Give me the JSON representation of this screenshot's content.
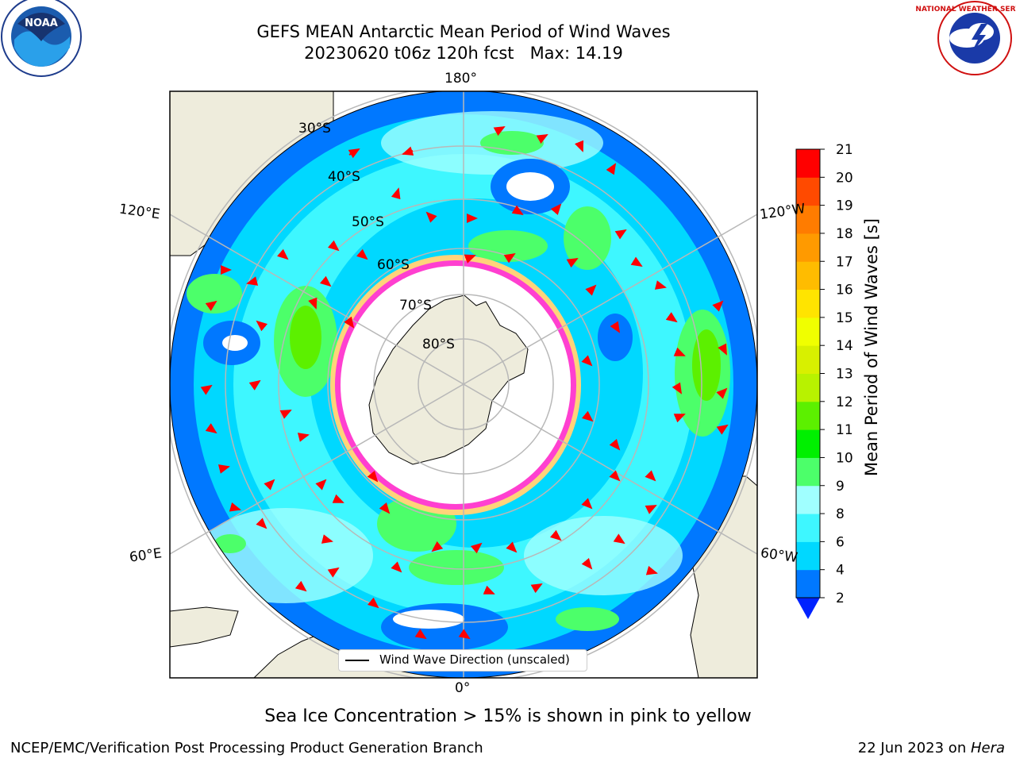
{
  "title": {
    "line1": "GEFS MEAN Antarctic Mean Period of Wind Waves",
    "line2": "20230620 t06z 120h fcst   Max: 14.19"
  },
  "logos": {
    "left": "NOAA",
    "right": "NATIONAL WEATHER SERVICE"
  },
  "map": {
    "projection": "south-polar-stereographic",
    "colors": {
      "land": "#eeecdc",
      "ocean_bg": "#ffffff",
      "ice_edge_pink": "#ff3fd0",
      "ice_edge_yellow": "#ffd37a",
      "arrow": "#ff0000",
      "grid": "#b8b8b8"
    },
    "longitude_labels": {
      "top": "180°",
      "bottom": "0°",
      "upper_left": "120°E",
      "upper_right": "120°W",
      "lower_left": "60°E",
      "lower_right": "60°W"
    },
    "latitude_labels": [
      "30°S",
      "40°S",
      "50°S",
      "60°S",
      "70°S",
      "80°S"
    ],
    "legend": {
      "label": "Wind Wave Direction (unscaled)"
    }
  },
  "colorbar": {
    "label": "Mean Period of Wind Waves [s]",
    "ticks": [
      2,
      4,
      6,
      8,
      9,
      10,
      11,
      12,
      13,
      14,
      15,
      16,
      17,
      18,
      19,
      20,
      21
    ],
    "colors": [
      "#0078ff",
      "#00d8ff",
      "#3ef7ff",
      "#a0ffff",
      "#4cff6a",
      "#00f000",
      "#5cf000",
      "#b8f200",
      "#d8f000",
      "#f0ff00",
      "#ffe400",
      "#ffbc00",
      "#ff9a00",
      "#ff7c00",
      "#ff4a00",
      "#ff0000"
    ],
    "extend_color": "#0022ff"
  },
  "caption": "Sea Ice Concentration > 15% is shown in pink to yellow",
  "footer": {
    "left": "NCEP/EMC/Verification Post Processing Product Generation Branch",
    "date": "22 Jun 2023 on ",
    "host": "Hera"
  }
}
